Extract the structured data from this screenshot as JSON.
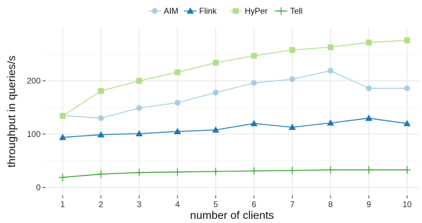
{
  "chart_data": {
    "type": "line",
    "xlabel": "number of clients",
    "ylabel": "throughput in queries/s",
    "x": [
      1,
      2,
      3,
      4,
      5,
      6,
      7,
      8,
      9,
      10
    ],
    "xlim": [
      0.55,
      10.3
    ],
    "ylim": [
      -15,
      300
    ],
    "yticks": [
      0,
      100,
      200
    ],
    "grid": true,
    "legend_position": "top",
    "series": [
      {
        "name": "AIM",
        "marker": "circle",
        "color": "#a6cee3",
        "values": [
          135,
          130,
          149,
          159,
          178,
          196,
          203,
          219,
          186,
          186
        ]
      },
      {
        "name": "Flink",
        "marker": "triangle",
        "color": "#1f78b4",
        "values": [
          94,
          99,
          101,
          105,
          108,
          120,
          113,
          121,
          130,
          120
        ]
      },
      {
        "name": "HyPer",
        "marker": "square",
        "color": "#b2df8a",
        "values": [
          134,
          181,
          200,
          216,
          234,
          247,
          258,
          263,
          272,
          276
        ]
      },
      {
        "name": "Tell",
        "marker": "plus",
        "color": "#33a02c",
        "values": [
          19,
          25,
          28,
          29,
          30,
          31,
          32,
          33,
          33,
          33
        ]
      }
    ]
  }
}
